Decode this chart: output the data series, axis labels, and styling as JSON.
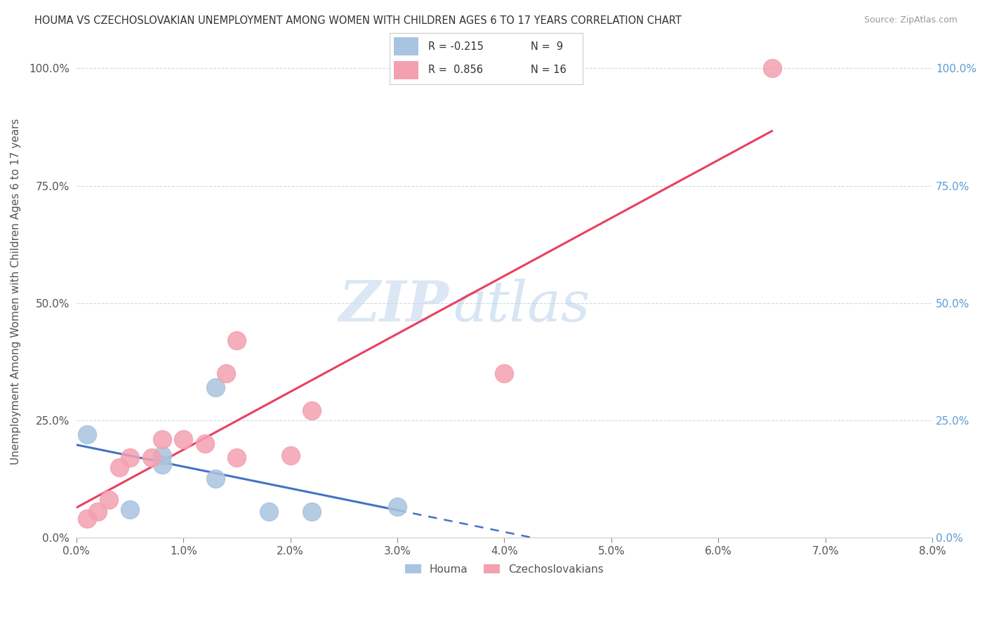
{
  "title": "HOUMA VS CZECHOSLOVAKIAN UNEMPLOYMENT AMONG WOMEN WITH CHILDREN AGES 6 TO 17 YEARS CORRELATION CHART",
  "source": "Source: ZipAtlas.com",
  "ylabel_left": "Unemployment Among Women with Children Ages 6 to 17 years",
  "legend_houma": "Houma",
  "legend_czech": "Czechoslovakians",
  "legend_R_houma": "R = -0.215",
  "legend_N_houma": "N =  9",
  "legend_R_czech": "R =  0.856",
  "legend_N_czech": "N = 16",
  "houma_color": "#a8c4e0",
  "czech_color": "#f4a0b0",
  "houma_line_color": "#4472c4",
  "czech_line_color": "#e84060",
  "xlim": [
    0.0,
    0.08
  ],
  "ylim": [
    0.0,
    1.05
  ],
  "xticks": [
    0.0,
    0.01,
    0.02,
    0.03,
    0.04,
    0.05,
    0.06,
    0.07,
    0.08
  ],
  "yticks": [
    0.0,
    0.25,
    0.5,
    0.75,
    1.0
  ],
  "ytick_labels": [
    "0.0%",
    "25.0%",
    "50.0%",
    "75.0%",
    "100.0%"
  ],
  "xtick_labels": [
    "0.0%",
    "1.0%",
    "2.0%",
    "3.0%",
    "4.0%",
    "5.0%",
    "6.0%",
    "7.0%",
    "8.0%"
  ],
  "houma_x": [
    0.001,
    0.005,
    0.008,
    0.008,
    0.013,
    0.013,
    0.018,
    0.022,
    0.03
  ],
  "houma_y": [
    0.22,
    0.06,
    0.155,
    0.175,
    0.125,
    0.32,
    0.055,
    0.055,
    0.065
  ],
  "czech_x": [
    0.001,
    0.002,
    0.003,
    0.004,
    0.005,
    0.007,
    0.008,
    0.01,
    0.012,
    0.014,
    0.015,
    0.015,
    0.02,
    0.022,
    0.04,
    0.065
  ],
  "czech_y": [
    0.04,
    0.055,
    0.08,
    0.15,
    0.17,
    0.17,
    0.21,
    0.21,
    0.2,
    0.35,
    0.42,
    0.17,
    0.175,
    0.27,
    0.35,
    1.0
  ],
  "watermark_zip": "ZIP",
  "watermark_atlas": "atlas",
  "background_color": "#ffffff",
  "grid_color": "#d0d8e8",
  "tick_color": "#888888",
  "label_color": "#555555",
  "right_axis_color": "#5b9bd5",
  "title_color": "#333333"
}
